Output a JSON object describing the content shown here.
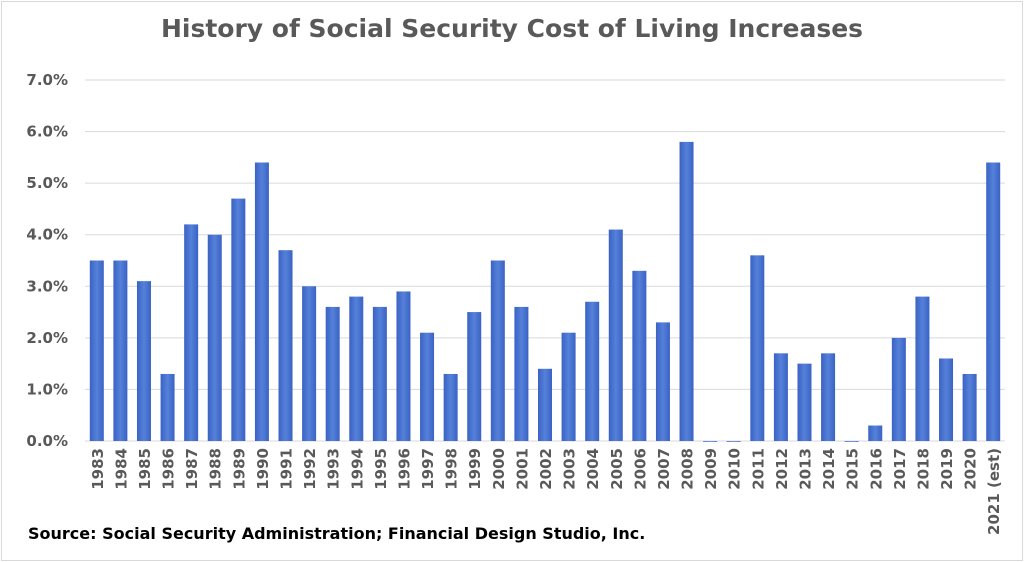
{
  "chart_data": {
    "type": "bar",
    "title": "History of Social Security Cost of Living Increases",
    "source": "Source: Social Security Administration; Financial Design Studio, Inc.",
    "categories": [
      "1983",
      "1984",
      "1985",
      "1986",
      "1987",
      "1988",
      "1989",
      "1990",
      "1991",
      "1992",
      "1993",
      "1994",
      "1995",
      "1996",
      "1997",
      "1998",
      "1999",
      "2000",
      "2001",
      "2002",
      "2003",
      "2004",
      "2005",
      "2006",
      "2007",
      "2008",
      "2009",
      "2010",
      "2011",
      "2012",
      "2013",
      "2014",
      "2015",
      "2016",
      "2017",
      "2018",
      "2019",
      "2020",
      "2021 (est)"
    ],
    "values": [
      3.5,
      3.5,
      3.1,
      1.3,
      4.2,
      4.0,
      4.7,
      5.4,
      3.7,
      3.0,
      2.6,
      2.8,
      2.6,
      2.9,
      2.1,
      1.3,
      2.5,
      3.5,
      2.6,
      1.4,
      2.1,
      2.7,
      4.1,
      3.3,
      2.3,
      5.8,
      0,
      0,
      3.6,
      1.7,
      1.5,
      1.7,
      0,
      0.3,
      2.0,
      2.8,
      1.6,
      1.3,
      5.4
    ],
    "ylim": [
      0,
      7
    ],
    "yticks": [
      "0.0%",
      "1.0%",
      "2.0%",
      "3.0%",
      "4.0%",
      "5.0%",
      "6.0%",
      "7.0%"
    ],
    "xlabel": "",
    "ylabel": "",
    "grid": true,
    "legend": "none",
    "colors": {
      "bar": "#4472c4",
      "bar_dark": "#3a62c4",
      "grid": "#d9d9d9",
      "text": "#595959"
    }
  }
}
